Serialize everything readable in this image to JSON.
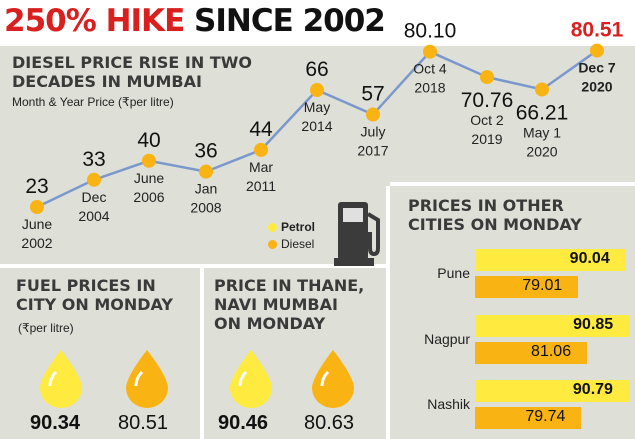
{
  "headline": {
    "part1": "250% HIKE ",
    "part2": "SINCE 2002"
  },
  "line_panel": {
    "title_line1": "DIESEL PRICE RISE IN TWO",
    "title_line2": "DECADES IN MUMBAI",
    "subtitle": "Month & Year Price (₹per litre)"
  },
  "legend": {
    "petrol": "Petrol",
    "diesel": "Diesel"
  },
  "fuel_city": {
    "title_line1": "FUEL PRICES IN",
    "title_line2": "CITY ON MONDAY",
    "unit": "(₹per litre)",
    "petrol": "90.34",
    "diesel": "80.51"
  },
  "thane": {
    "title_line1": "PRICE IN THANE,",
    "title_line2": "NAVI MUMBAI",
    "title_line3": "ON MONDAY",
    "petrol": "90.46",
    "diesel": "80.63"
  },
  "other_cities": {
    "title_line1": "PRICES IN OTHER",
    "title_line2": "CITIES ON MONDAY"
  },
  "colors": {
    "petrol": "#ffea3f",
    "diesel": "#f9b313",
    "line": "#7b98cc",
    "accent": "#d9201f",
    "panel": "#dedfd7"
  },
  "icons": {
    "fuel_pump": "fuel-pump-icon",
    "drop": "fuel-drop-icon"
  },
  "chart_data": [
    {
      "type": "line",
      "title": "DIESEL PRICE RISE IN TWO DECADES IN MUMBAI",
      "subtitle": "Month & Year Price (₹per litre)",
      "series": [
        {
          "name": "Diesel",
          "points": [
            {
              "label1": "June",
              "label2": "2002",
              "value": 23,
              "display": "23"
            },
            {
              "label1": "Dec",
              "label2": "2004",
              "value": 33,
              "display": "33"
            },
            {
              "label1": "June",
              "label2": "2006",
              "value": 40,
              "display": "40"
            },
            {
              "label1": "Jan",
              "label2": "2008",
              "value": 36,
              "display": "36"
            },
            {
              "label1": "Mar",
              "label2": "2011",
              "value": 44,
              "display": "44"
            },
            {
              "label1": "May",
              "label2": "2014",
              "value": 66,
              "display": "66"
            },
            {
              "label1": "July",
              "label2": "2017",
              "value": 57,
              "display": "57"
            },
            {
              "label1": "Oct 4",
              "label2": "2018",
              "value": 80.1,
              "display": "80.10"
            },
            {
              "label1": "Oct 2",
              "label2": "2019",
              "value": 70.76,
              "display": "70.76"
            },
            {
              "label1": "May 1",
              "label2": "2020",
              "value": 66.21,
              "display": "66.21"
            },
            {
              "label1": "Dec 7",
              "label2": "2020",
              "value": 80.51,
              "display": "80.51"
            }
          ]
        }
      ]
    },
    {
      "type": "bar",
      "title": "PRICES IN OTHER CITIES ON MONDAY",
      "categories": [
        "Pune",
        "Nagpur",
        "Nashik"
      ],
      "series": [
        {
          "name": "Petrol",
          "values": [
            90.04,
            90.85,
            90.79
          ],
          "display": [
            "90.04",
            "90.85",
            "90.79"
          ]
        },
        {
          "name": "Diesel",
          "values": [
            79.01,
            81.06,
            79.74
          ],
          "display": [
            "79.01",
            "81.06",
            "79.74"
          ]
        }
      ]
    }
  ]
}
